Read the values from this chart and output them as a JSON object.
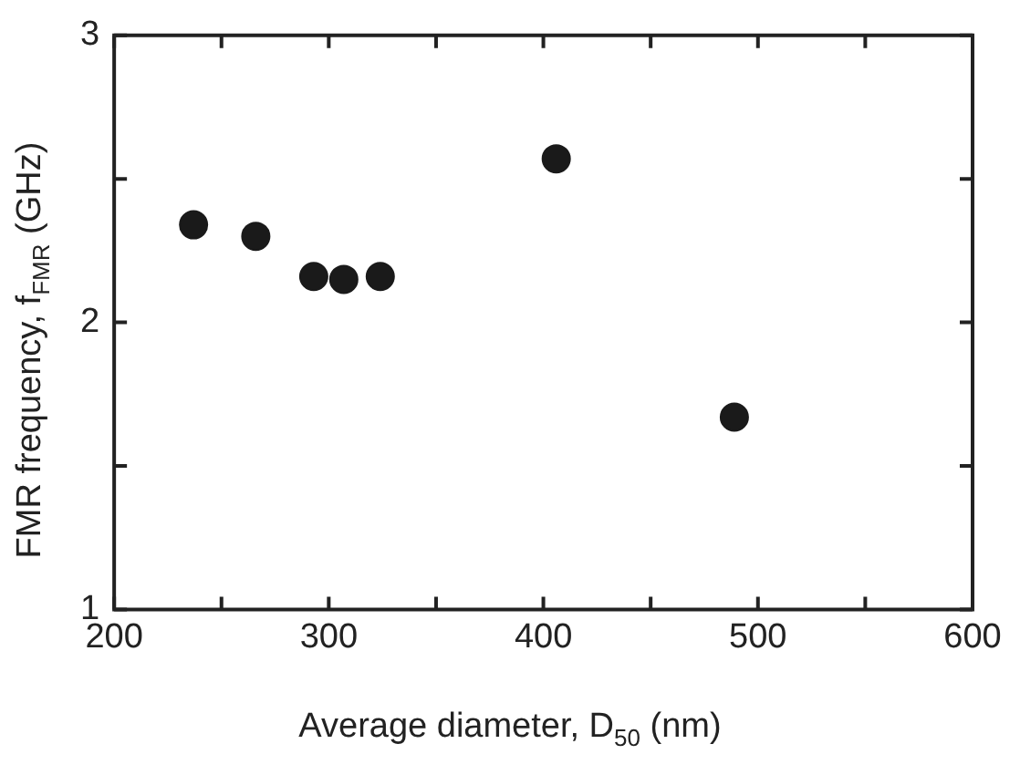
{
  "chart_data": {
    "type": "scatter",
    "xlabel": "Average diameter,  D$_{50}$ (nm)",
    "ylabel": "FMR frequency, f$_{FMR}$ (GHz)",
    "x": [
      237,
      266,
      293,
      307,
      324,
      406,
      489
    ],
    "series": [
      {
        "color": "#1a1a1a",
        "values": [
          2.34,
          2.3,
          2.16,
          2.15,
          2.16,
          2.57,
          1.67
        ]
      }
    ],
    "xlim": [
      200,
      600
    ],
    "xticks": [
      200,
      {
        "value": 250,
        "label": null
      },
      300,
      {
        "value": 350,
        "label": null
      },
      400,
      {
        "value": 450,
        "label": null
      },
      500,
      {
        "value": 550,
        "label": null
      },
      600
    ],
    "ylim": [
      1,
      3
    ],
    "yticks": [
      1,
      {
        "value": 1.5,
        "label": null
      },
      2,
      {
        "value": 2.5,
        "label": null
      },
      3
    ],
    "marker": "circle",
    "grid": false,
    "legend": false
  }
}
